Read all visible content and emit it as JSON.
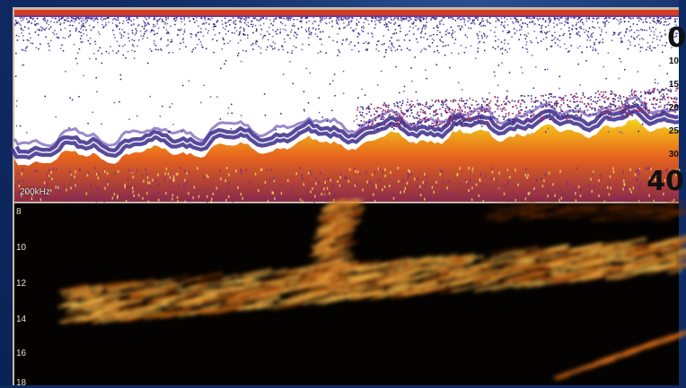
{
  "sonar_pane": {
    "frequency_label": "200kHz",
    "depth_top": "0",
    "depth_bottom": "40",
    "scale_ticks": [
      "10",
      "15",
      "20",
      "25",
      "30"
    ]
  },
  "structure_pane": {
    "depth_ticks": [
      "8",
      "10",
      "12",
      "14",
      "16",
      "18"
    ]
  },
  "colors": {
    "frame": "#0d2a63",
    "surface_band": "#d63a1f",
    "noise": "#3a2a8a",
    "bottom_hot": "#f5d21a",
    "bottom_warm": "#e8651c",
    "structure_return": "#f0a030"
  }
}
